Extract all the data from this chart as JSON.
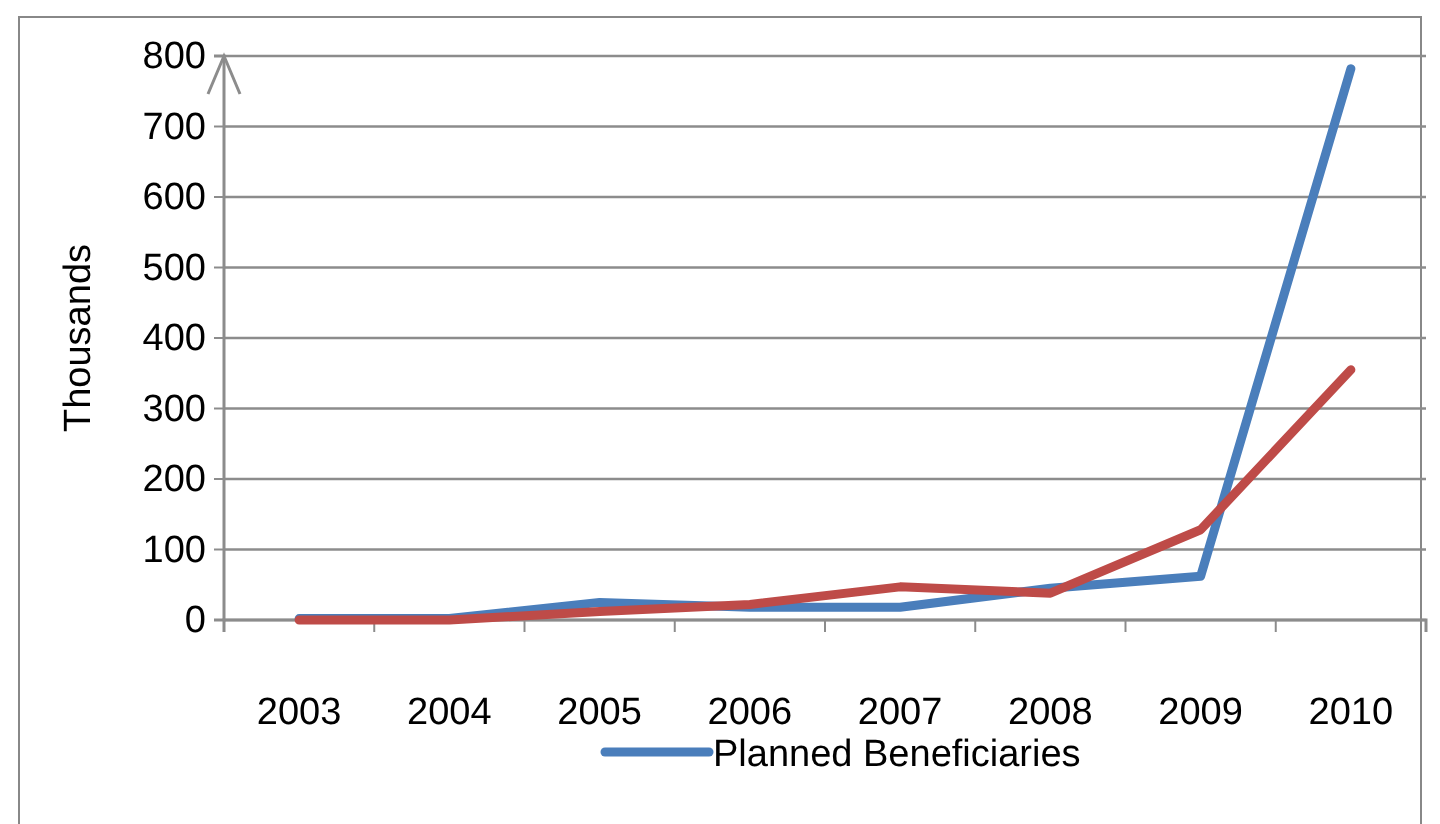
{
  "chart_data": {
    "type": "line",
    "ylabel": "Thousands",
    "categories": [
      "2003",
      "2004",
      "2005",
      "2006",
      "2007",
      "2008",
      "2009",
      "2010"
    ],
    "series": [
      {
        "name": "Planned Beneficiaries",
        "color": "#4a7ebb",
        "values": [
          2,
          2,
          25,
          18,
          18,
          45,
          62,
          782
        ]
      },
      {
        "color": "#be4b48",
        "values": [
          0,
          0,
          12,
          22,
          47,
          38,
          128,
          355
        ]
      }
    ],
    "ylim": [
      0,
      800
    ],
    "yticks": [
      0,
      100,
      200,
      300,
      400,
      500,
      600,
      700,
      800
    ],
    "grid": "y",
    "legend": "bottom",
    "marker": "none",
    "line_style": "solid"
  }
}
